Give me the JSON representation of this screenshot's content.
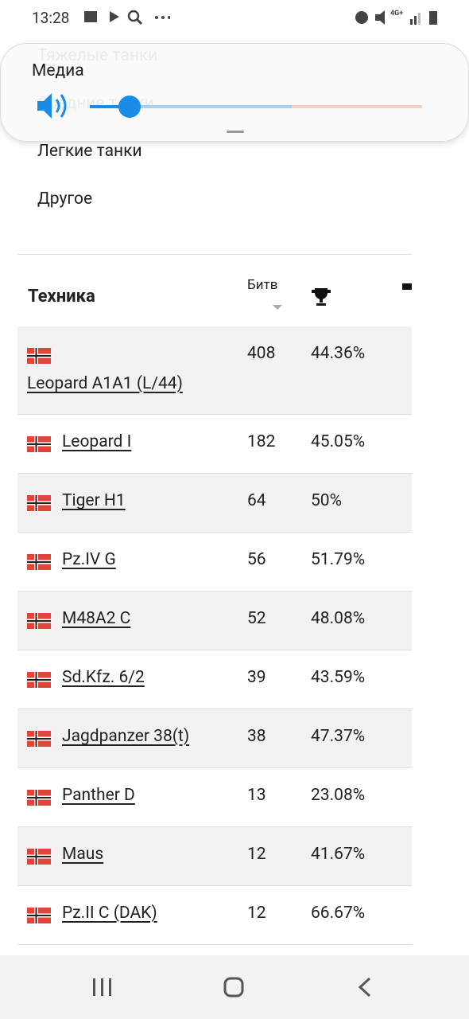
{
  "status_bar": {
    "time": "13:28",
    "network": "4G+"
  },
  "media_panel": {
    "title": "Медиа"
  },
  "menu": {
    "items": [
      "Тяжелые танки",
      "Средние танки",
      "Легкие танки",
      "Другое"
    ]
  },
  "table": {
    "header": {
      "vehicle": "Техника",
      "battles": "Битв"
    },
    "rows": [
      [
        "Leopard A1A1 (L/44)",
        "408",
        "44.36%"
      ],
      [
        "Leopard I",
        "182",
        "45.05%"
      ],
      [
        "Tiger H1",
        "64",
        "50%"
      ],
      [
        "Pz.IV G",
        "56",
        "51.79%"
      ],
      [
        "M48A2 C",
        "52",
        "48.08%"
      ],
      [
        "Sd.Kfz. 6/2",
        "39",
        "43.59%"
      ],
      [
        "Jagdpanzer 38(t)",
        "38",
        "47.37%"
      ],
      [
        "Panther D",
        "13",
        "23.08%"
      ],
      [
        "Maus",
        "12",
        "41.67%"
      ],
      [
        "Pz.II C (DAK)",
        "12",
        "66.67%"
      ]
    ]
  }
}
